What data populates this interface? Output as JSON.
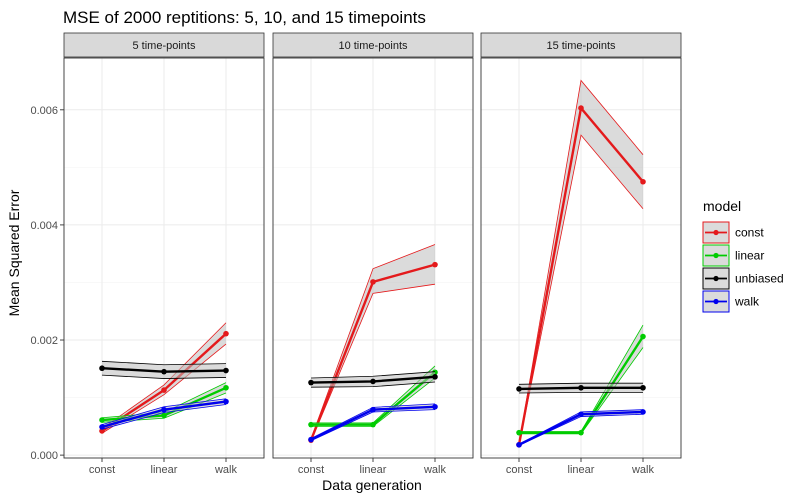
{
  "chart_data": {
    "type": "line",
    "title": "MSE of 2000 reptitions: 5, 10, and 15 timepoints",
    "xlabel": "Data generation",
    "ylabel": "Mean Squared Error",
    "categories": [
      "const",
      "linear",
      "walk"
    ],
    "ylim": [
      -5e-05,
      0.0069
    ],
    "y_ticks": [
      0.0,
      0.002,
      0.004,
      0.006
    ],
    "y_tick_labels": [
      "0.000",
      "0.002",
      "0.004",
      "0.006"
    ],
    "grid": true,
    "legend": {
      "title": "model",
      "position": "right",
      "entries": [
        "const",
        "linear",
        "unbiased",
        "walk"
      ]
    },
    "colors": {
      "const": "#e41a1c",
      "linear": "#00cc00",
      "unbiased": "#000000",
      "walk": "#0000ee",
      "ribbon": "#bdbdbd",
      "strip_bg": "#d9d9d9",
      "grid_major": "#ebebeb",
      "grid_minor": "#f5f5f5"
    },
    "panels": [
      {
        "label": "5 time-points",
        "series": [
          {
            "name": "const",
            "values": [
              0.00042,
              0.00113,
              0.00211
            ],
            "lower": [
              0.00038,
              0.00105,
              0.00193
            ],
            "upper": [
              0.00046,
              0.00122,
              0.0023
            ]
          },
          {
            "name": "linear",
            "values": [
              0.00061,
              0.00069,
              0.00117
            ],
            "lower": [
              0.00057,
              0.00064,
              0.00108
            ],
            "upper": [
              0.00065,
              0.00074,
              0.00126
            ]
          },
          {
            "name": "unbiased",
            "values": [
              0.00151,
              0.00145,
              0.00147
            ],
            "lower": [
              0.00139,
              0.00133,
              0.00135
            ],
            "upper": [
              0.00163,
              0.00157,
              0.00159
            ]
          },
          {
            "name": "walk",
            "values": [
              0.00049,
              0.00079,
              0.00093
            ],
            "lower": [
              0.00045,
              0.00074,
              0.00088
            ],
            "upper": [
              0.00053,
              0.00084,
              0.00098
            ]
          }
        ]
      },
      {
        "label": "10 time-points",
        "series": [
          {
            "name": "const",
            "values": [
              0.00026,
              0.00301,
              0.00331
            ],
            "lower": [
              0.00024,
              0.00281,
              0.00297
            ],
            "upper": [
              0.00028,
              0.00324,
              0.00366
            ]
          },
          {
            "name": "linear",
            "values": [
              0.00053,
              0.00053,
              0.00144
            ],
            "lower": [
              0.0005,
              0.0005,
              0.00134
            ],
            "upper": [
              0.00056,
              0.00056,
              0.00155
            ]
          },
          {
            "name": "unbiased",
            "values": [
              0.00126,
              0.00128,
              0.00136
            ],
            "lower": [
              0.00118,
              0.00119,
              0.00127
            ],
            "upper": [
              0.00134,
              0.00137,
              0.00145
            ]
          },
          {
            "name": "walk",
            "values": [
              0.00027,
              0.00079,
              0.00084
            ],
            "lower": [
              0.00025,
              0.00075,
              0.00079
            ],
            "upper": [
              0.00029,
              0.00083,
              0.00089
            ]
          }
        ]
      },
      {
        "label": "15 time-points",
        "series": [
          {
            "name": "const",
            "values": [
              0.00018,
              0.00603,
              0.00475
            ],
            "lower": [
              0.00017,
              0.00556,
              0.00428
            ],
            "upper": [
              0.00019,
              0.00651,
              0.00522
            ]
          },
          {
            "name": "linear",
            "values": [
              0.00039,
              0.00039,
              0.00206
            ],
            "lower": [
              0.00037,
              0.00037,
              0.00187
            ],
            "upper": [
              0.00041,
              0.00041,
              0.00226
            ]
          },
          {
            "name": "unbiased",
            "values": [
              0.00115,
              0.00117,
              0.00117
            ],
            "lower": [
              0.00108,
              0.00109,
              0.00109
            ],
            "upper": [
              0.00123,
              0.00125,
              0.00125
            ]
          },
          {
            "name": "walk",
            "values": [
              0.00018,
              0.00071,
              0.00075
            ],
            "lower": [
              0.00017,
              0.00067,
              0.00071
            ],
            "upper": [
              0.00019,
              0.00075,
              0.00079
            ]
          }
        ]
      }
    ]
  }
}
